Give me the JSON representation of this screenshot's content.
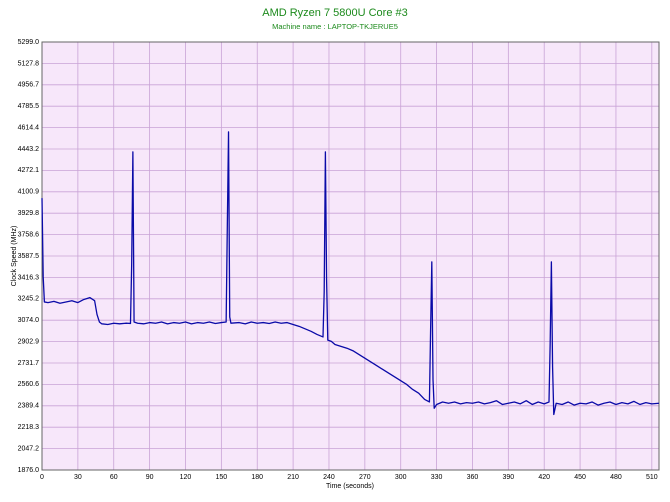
{
  "chart_data": {
    "type": "line",
    "title": "AMD Ryzen 7 5800U Core #3",
    "subtitle": "Machine name : LAPTOP-TKJERUE5",
    "x_label": "Time (seconds)",
    "y_label": "Clock Speed (MHz)",
    "x": [
      0,
      1,
      2,
      5,
      10,
      15,
      20,
      25,
      30,
      35,
      40,
      44,
      46,
      48,
      50,
      55,
      60,
      65,
      70,
      74,
      75,
      76,
      77,
      80,
      85,
      90,
      95,
      100,
      105,
      110,
      115,
      120,
      125,
      130,
      135,
      140,
      145,
      150,
      154,
      155,
      156,
      157,
      158,
      165,
      170,
      175,
      180,
      185,
      190,
      195,
      200,
      205,
      210,
      215,
      220,
      225,
      230,
      235,
      236,
      237,
      238,
      239,
      242,
      245,
      250,
      255,
      260,
      265,
      270,
      275,
      280,
      285,
      290,
      295,
      300,
      305,
      310,
      315,
      320,
      324,
      325,
      326,
      327,
      328,
      330,
      335,
      340,
      345,
      350,
      355,
      360,
      365,
      370,
      375,
      380,
      385,
      390,
      395,
      400,
      405,
      410,
      415,
      420,
      424,
      425,
      426,
      427,
      428,
      430,
      435,
      440,
      445,
      450,
      455,
      460,
      465,
      470,
      475,
      480,
      485,
      490,
      495,
      500,
      505,
      510,
      516
    ],
    "series": [
      {
        "name": "Core #3",
        "color": "#0a0aa8",
        "values": [
          4050,
          3420,
          3220,
          3215,
          3225,
          3210,
          3220,
          3230,
          3215,
          3240,
          3255,
          3230,
          3120,
          3060,
          3045,
          3040,
          3050,
          3045,
          3050,
          3048,
          3520,
          4420,
          3060,
          3050,
          3045,
          3055,
          3050,
          3060,
          3045,
          3055,
          3050,
          3060,
          3045,
          3055,
          3050,
          3060,
          3048,
          3055,
          3060,
          3840,
          4580,
          3100,
          3050,
          3055,
          3045,
          3060,
          3050,
          3055,
          3048,
          3060,
          3050,
          3055,
          3040,
          3025,
          3005,
          2985,
          2960,
          2940,
          3300,
          4420,
          3400,
          2915,
          2905,
          2880,
          2865,
          2850,
          2830,
          2800,
          2770,
          2740,
          2710,
          2680,
          2650,
          2620,
          2590,
          2560,
          2520,
          2490,
          2440,
          2420,
          3000,
          3540,
          2600,
          2370,
          2400,
          2420,
          2410,
          2420,
          2405,
          2415,
          2410,
          2420,
          2405,
          2415,
          2430,
          2400,
          2410,
          2420,
          2405,
          2430,
          2400,
          2420,
          2405,
          2420,
          2900,
          3540,
          2700,
          2320,
          2410,
          2400,
          2420,
          2395,
          2410,
          2405,
          2420,
          2395,
          2410,
          2420,
          2400,
          2415,
          2405,
          2425,
          2400,
          2415,
          2405,
          2410
        ]
      }
    ],
    "xlim": [
      0,
      516
    ],
    "ylim": [
      1876,
      5299
    ],
    "xticks": [
      0,
      30,
      60,
      90,
      120,
      150,
      180,
      210,
      240,
      270,
      300,
      330,
      360,
      390,
      420,
      450,
      480,
      510
    ],
    "yticks": [
      {
        "value": 1876,
        "label": "1876.0"
      },
      2047.2,
      2218.3,
      2389.4,
      2560.6,
      2731.7,
      2902.9,
      {
        "value": 3074,
        "label": "3074.0"
      },
      3245.2,
      3416.3,
      3587.5,
      3758.6,
      3929.8,
      4100.9,
      4272.1,
      4443.2,
      4614.4,
      4785.5,
      4956.7,
      5127.8,
      {
        "value": 5299,
        "label": "5299.0"
      }
    ],
    "grid": true,
    "background": "#f7e7fa"
  }
}
